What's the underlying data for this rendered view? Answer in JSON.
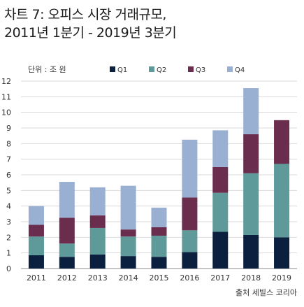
{
  "header": {
    "title_line1": "차트 7: 오피스 시장 거래규모,",
    "title_line2": "2011년 1분기 - 2019년 3분기"
  },
  "source": "출처 세빌스 코리아",
  "chart_data": {
    "type": "bar",
    "stacked": true,
    "unit_label": "단위 : 조 원",
    "categories": [
      "2011",
      "2012",
      "2013",
      "2014",
      "2015",
      "2016",
      "2017",
      "2018",
      "2019"
    ],
    "series": [
      {
        "name": "Q1",
        "color": "#0b1f3f",
        "values": [
          0.85,
          0.75,
          0.9,
          0.8,
          0.75,
          1.05,
          2.35,
          2.15,
          2.0
        ]
      },
      {
        "name": "Q2",
        "color": "#5f9a9a",
        "values": [
          1.2,
          0.85,
          1.7,
          1.25,
          1.35,
          1.4,
          2.5,
          3.95,
          4.7
        ]
      },
      {
        "name": "Q3",
        "color": "#6b2d4d",
        "values": [
          0.75,
          1.65,
          0.8,
          0.45,
          0.55,
          2.1,
          1.65,
          2.5,
          2.8
        ]
      },
      {
        "name": "Q4",
        "color": "#9ab0d2",
        "values": [
          1.2,
          2.3,
          1.8,
          2.8,
          1.25,
          3.7,
          2.35,
          2.95,
          0
        ]
      }
    ],
    "ylim": [
      0,
      12
    ],
    "yticks": [
      0,
      1,
      2,
      3,
      4,
      5,
      6,
      7,
      8,
      9,
      10,
      11,
      12
    ],
    "grid": true,
    "legend": "top"
  }
}
